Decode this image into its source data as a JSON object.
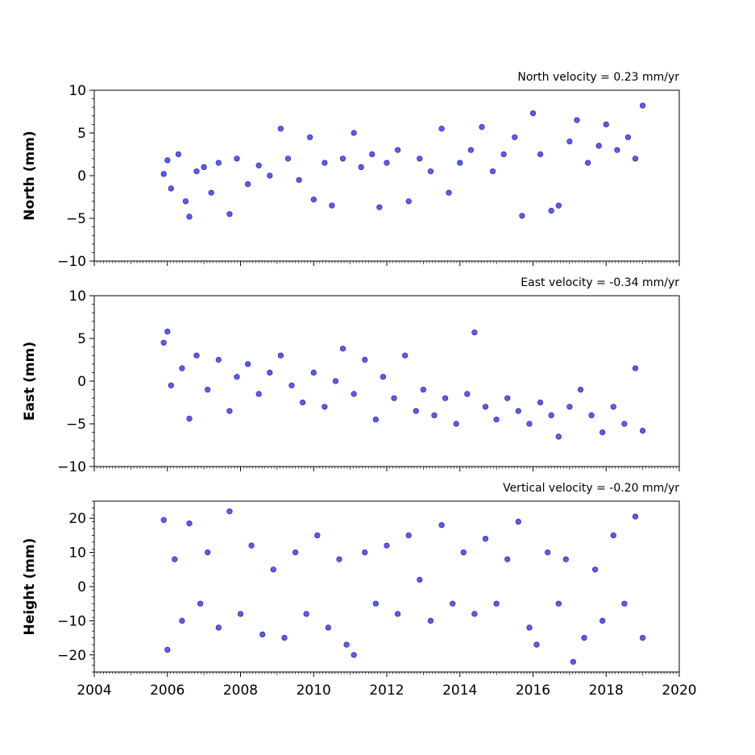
{
  "chart_data": [
    {
      "type": "scatter",
      "title": "North velocity = 0.23 mm/yr",
      "xlabel": "",
      "ylabel": "North (mm)",
      "xlim": [
        2004,
        2020
      ],
      "ylim": [
        -10,
        10
      ],
      "yticks": [
        -10,
        -5,
        0,
        5,
        10
      ],
      "ytick_labels": [
        "−10",
        "−5",
        "0",
        "5",
        "10"
      ],
      "grid": false,
      "marker_color": "#5a5aff",
      "marker_edge": "#1a1a66",
      "series": [
        {
          "values_note": "",
          "points": [
            [
              2005.9,
              0.2
            ],
            [
              2006.0,
              1.8
            ],
            [
              2006.1,
              -1.5
            ],
            [
              2006.3,
              2.5
            ],
            [
              2006.5,
              -3.0
            ],
            [
              2006.6,
              -4.8
            ],
            [
              2006.8,
              0.5
            ],
            [
              2007.0,
              1.0
            ],
            [
              2007.2,
              -2.0
            ],
            [
              2007.4,
              1.5
            ],
            [
              2007.7,
              -4.5
            ],
            [
              2007.9,
              2.0
            ],
            [
              2008.2,
              -1.0
            ],
            [
              2008.5,
              1.2
            ],
            [
              2008.8,
              0.0
            ],
            [
              2009.1,
              5.5
            ],
            [
              2009.3,
              2.0
            ],
            [
              2009.6,
              -0.5
            ],
            [
              2009.9,
              4.5
            ],
            [
              2010.0,
              -2.8
            ],
            [
              2010.3,
              1.5
            ],
            [
              2010.5,
              -3.5
            ],
            [
              2010.8,
              2.0
            ],
            [
              2011.1,
              5.0
            ],
            [
              2011.3,
              1.0
            ],
            [
              2011.6,
              2.5
            ],
            [
              2011.8,
              -3.7
            ],
            [
              2012.0,
              1.5
            ],
            [
              2012.3,
              3.0
            ],
            [
              2012.6,
              -3.0
            ],
            [
              2012.9,
              2.0
            ],
            [
              2013.2,
              0.5
            ],
            [
              2013.5,
              5.5
            ],
            [
              2013.7,
              -2.0
            ],
            [
              2014.0,
              1.5
            ],
            [
              2014.3,
              3.0
            ],
            [
              2014.6,
              5.7
            ],
            [
              2014.9,
              0.5
            ],
            [
              2015.2,
              2.5
            ],
            [
              2015.5,
              4.5
            ],
            [
              2015.7,
              -4.7
            ],
            [
              2016.0,
              7.3
            ],
            [
              2016.2,
              2.5
            ],
            [
              2016.5,
              -4.1
            ],
            [
              2016.7,
              -3.5
            ],
            [
              2017.0,
              4.0
            ],
            [
              2017.2,
              6.5
            ],
            [
              2017.5,
              1.5
            ],
            [
              2017.8,
              3.5
            ],
            [
              2018.0,
              6.0
            ],
            [
              2018.3,
              3.0
            ],
            [
              2018.6,
              4.5
            ],
            [
              2018.8,
              2.0
            ],
            [
              2019.0,
              8.2
            ]
          ]
        }
      ]
    },
    {
      "type": "scatter",
      "title": "East velocity = -0.34 mm/yr",
      "xlabel": "",
      "ylabel": "East (mm)",
      "xlim": [
        2004,
        2020
      ],
      "ylim": [
        -10,
        10
      ],
      "yticks": [
        -10,
        -5,
        0,
        5,
        10
      ],
      "ytick_labels": [
        "−10",
        "−5",
        "0",
        "5",
        "10"
      ],
      "grid": false,
      "marker_color": "#5a5aff",
      "marker_edge": "#1a1a66",
      "series": [
        {
          "values_note": "",
          "points": [
            [
              2005.9,
              4.5
            ],
            [
              2006.0,
              5.8
            ],
            [
              2006.1,
              -0.5
            ],
            [
              2006.4,
              1.5
            ],
            [
              2006.6,
              -4.4
            ],
            [
              2006.8,
              3.0
            ],
            [
              2007.1,
              -1.0
            ],
            [
              2007.4,
              2.5
            ],
            [
              2007.7,
              -3.5
            ],
            [
              2007.9,
              0.5
            ],
            [
              2008.2,
              2.0
            ],
            [
              2008.5,
              -1.5
            ],
            [
              2008.8,
              1.0
            ],
            [
              2009.1,
              3.0
            ],
            [
              2009.4,
              -0.5
            ],
            [
              2009.7,
              -2.5
            ],
            [
              2010.0,
              1.0
            ],
            [
              2010.3,
              -3.0
            ],
            [
              2010.6,
              0.0
            ],
            [
              2010.8,
              3.8
            ],
            [
              2011.1,
              -1.5
            ],
            [
              2011.4,
              2.5
            ],
            [
              2011.7,
              -4.5
            ],
            [
              2011.9,
              0.5
            ],
            [
              2012.2,
              -2.0
            ],
            [
              2012.5,
              3.0
            ],
            [
              2012.8,
              -3.5
            ],
            [
              2013.0,
              -1.0
            ],
            [
              2013.3,
              -4.0
            ],
            [
              2013.6,
              -2.0
            ],
            [
              2013.9,
              -5.0
            ],
            [
              2014.2,
              -1.5
            ],
            [
              2014.4,
              5.7
            ],
            [
              2014.7,
              -3.0
            ],
            [
              2015.0,
              -4.5
            ],
            [
              2015.3,
              -2.0
            ],
            [
              2015.6,
              -3.5
            ],
            [
              2015.9,
              -5.0
            ],
            [
              2016.2,
              -2.5
            ],
            [
              2016.5,
              -4.0
            ],
            [
              2016.7,
              -6.5
            ],
            [
              2017.0,
              -3.0
            ],
            [
              2017.3,
              -1.0
            ],
            [
              2017.6,
              -4.0
            ],
            [
              2017.9,
              -6.0
            ],
            [
              2018.2,
              -3.0
            ],
            [
              2018.5,
              -5.0
            ],
            [
              2018.8,
              1.5
            ],
            [
              2019.0,
              -5.8
            ]
          ]
        }
      ]
    },
    {
      "type": "scatter",
      "title": "Vertical velocity = -0.20 mm/yr",
      "xlabel": "",
      "ylabel": "Height (mm)",
      "xlim": [
        2004,
        2020
      ],
      "ylim": [
        -25,
        25
      ],
      "yticks": [
        -20,
        -10,
        0,
        10,
        20
      ],
      "ytick_labels": [
        "−20",
        "−10",
        "0",
        "10",
        "20"
      ],
      "xticks": [
        2004,
        2006,
        2008,
        2010,
        2012,
        2014,
        2016,
        2018,
        2020
      ],
      "xtick_labels": [
        "2004",
        "2006",
        "2008",
        "2010",
        "2012",
        "2014",
        "2016",
        "2018",
        "2020"
      ],
      "grid": false,
      "marker_color": "#5a5aff",
      "marker_edge": "#1a1a66",
      "series": [
        {
          "values_note": "",
          "points": [
            [
              2005.9,
              19.5
            ],
            [
              2006.0,
              -18.5
            ],
            [
              2006.2,
              8.0
            ],
            [
              2006.4,
              -10.0
            ],
            [
              2006.6,
              18.5
            ],
            [
              2006.9,
              -5.0
            ],
            [
              2007.1,
              10.0
            ],
            [
              2007.4,
              -12.0
            ],
            [
              2007.7,
              22.0
            ],
            [
              2008.0,
              -8.0
            ],
            [
              2008.3,
              12.0
            ],
            [
              2008.6,
              -14.0
            ],
            [
              2008.9,
              5.0
            ],
            [
              2009.2,
              -15.0
            ],
            [
              2009.5,
              10.0
            ],
            [
              2009.8,
              -8.0
            ],
            [
              2010.1,
              15.0
            ],
            [
              2010.4,
              -12.0
            ],
            [
              2010.7,
              8.0
            ],
            [
              2010.9,
              -17.0
            ],
            [
              2011.1,
              -20.0
            ],
            [
              2011.4,
              10.0
            ],
            [
              2011.7,
              -5.0
            ],
            [
              2012.0,
              12.0
            ],
            [
              2012.3,
              -8.0
            ],
            [
              2012.6,
              15.0
            ],
            [
              2012.9,
              2.0
            ],
            [
              2013.2,
              -10.0
            ],
            [
              2013.5,
              18.0
            ],
            [
              2013.8,
              -5.0
            ],
            [
              2014.1,
              10.0
            ],
            [
              2014.4,
              -8.0
            ],
            [
              2014.7,
              14.0
            ],
            [
              2015.0,
              -5.0
            ],
            [
              2015.3,
              8.0
            ],
            [
              2015.6,
              19.0
            ],
            [
              2015.9,
              -12.0
            ],
            [
              2016.1,
              -17.0
            ],
            [
              2016.4,
              10.0
            ],
            [
              2016.7,
              -5.0
            ],
            [
              2016.9,
              8.0
            ],
            [
              2017.1,
              -22.0
            ],
            [
              2017.4,
              -15.0
            ],
            [
              2017.7,
              5.0
            ],
            [
              2017.9,
              -10.0
            ],
            [
              2018.2,
              15.0
            ],
            [
              2018.5,
              -5.0
            ],
            [
              2018.8,
              20.5
            ],
            [
              2019.0,
              -15.0
            ]
          ]
        }
      ]
    }
  ]
}
